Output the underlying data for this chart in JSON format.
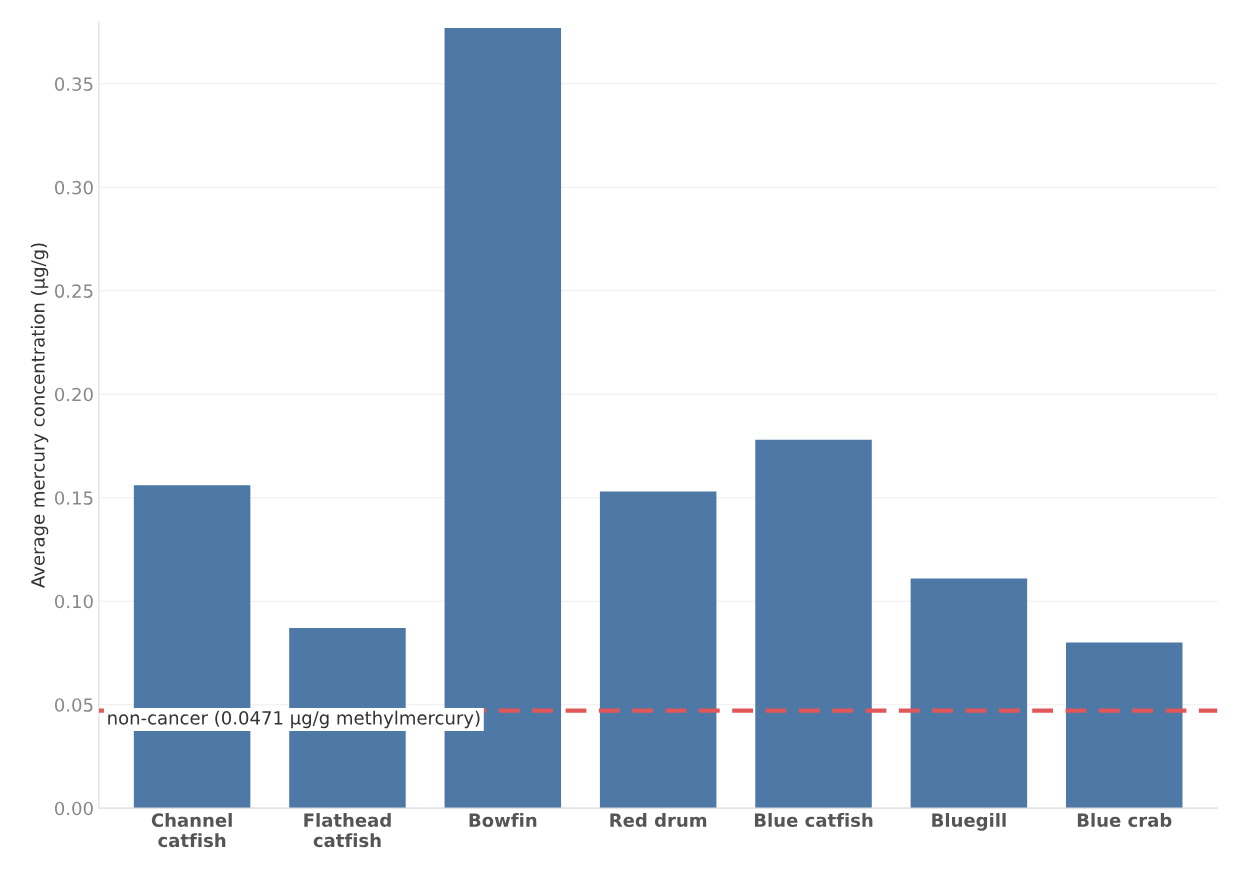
{
  "chart_data": {
    "type": "bar",
    "ylabel": "Average mercury concentration (µg/g)",
    "categories": [
      "Channel\ncatfish",
      "Flathead\ncatfish",
      "Bowfin",
      "Red drum",
      "Blue catfish",
      "Bluegill",
      "Blue crab"
    ],
    "values": [
      0.156,
      0.087,
      0.377,
      0.153,
      0.178,
      0.111,
      0.08
    ],
    "color": "#4e79a7",
    "ylim": [
      0,
      0.38
    ],
    "yticks": [
      {
        "value": 0,
        "label": "0.00"
      },
      {
        "value": 0.05,
        "label": "0.05"
      },
      {
        "value": 0.1,
        "label": "0.10"
      },
      {
        "value": 0.15,
        "label": "0.15"
      },
      {
        "value": 0.2,
        "label": "0.20"
      },
      {
        "value": 0.25,
        "label": "0.25"
      },
      {
        "value": 0.3,
        "label": "0.30"
      },
      {
        "value": 0.35,
        "label": "0.35"
      }
    ],
    "grid": "y",
    "ref_lines": [
      {
        "axis": "y",
        "value": 0.0471,
        "label": "non-cancer (0.0471 µg/g methylmercury)",
        "color": "#e15759",
        "line_style": "dashed"
      }
    ]
  }
}
